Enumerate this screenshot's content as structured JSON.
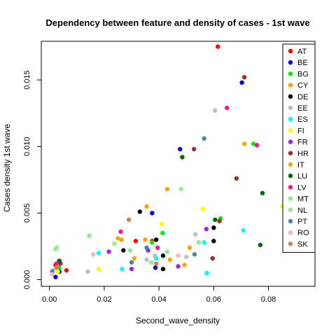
{
  "chart_data": {
    "type": "scatter",
    "title": "Dependency between feature and density of cases -  1st wave",
    "xlabel": "Second_wave_density",
    "ylabel": "Cases density  1st wave",
    "xlim": [
      -0.003,
      0.097
    ],
    "ylim": [
      -0.0005,
      0.0179
    ],
    "xticks": [
      0.0,
      0.02,
      0.04,
      0.06,
      0.08
    ],
    "xtick_labels": [
      "0.00",
      "0.02",
      "0.04",
      "0.06",
      "0.08"
    ],
    "yticks": [
      0.0,
      0.005,
      0.01,
      0.015
    ],
    "ytick_labels": [
      "0.000",
      "0.005",
      "0.010",
      "0.015"
    ],
    "grid": false,
    "legend_position": "top-right",
    "series": [
      {
        "name": "AT",
        "color": "#FF0000",
        "points": [
          [
            0.0615,
            0.0175
          ],
          [
            0.0315,
            0.0029
          ],
          [
            0.0375,
            0.0029
          ],
          [
            0.0062,
            0.0007
          ],
          [
            0.0022,
            0.0011
          ]
        ]
      },
      {
        "name": "BE",
        "color": "#0000FF",
        "points": [
          [
            0.0703,
            0.0148
          ],
          [
            0.0477,
            0.0098
          ],
          [
            0.0375,
            0.005
          ],
          [
            0.0387,
            0.0009
          ],
          [
            0.0022,
            0.0002
          ],
          [
            0.0036,
            0.0006
          ]
        ]
      },
      {
        "name": "BG",
        "color": "#00EE00",
        "points": [
          [
            0.0745,
            0.0102
          ],
          [
            0.0413,
            0.0035
          ],
          [
            0.0375,
            0.0028
          ],
          [
            0.0625,
            0.0046
          ],
          [
            0.0035,
            0.0009
          ]
        ]
      },
      {
        "name": "CY",
        "color": "#FFA500",
        "points": [
          [
            0.0712,
            0.0102
          ],
          [
            0.043,
            0.0068
          ],
          [
            0.0355,
            0.0055
          ],
          [
            0.0512,
            0.0024
          ],
          [
            0.0263,
            0.003
          ],
          [
            0.0493,
            0.0011
          ],
          [
            0.031,
            0.0016
          ]
        ]
      },
      {
        "name": "DE",
        "color": "#000000",
        "points": [
          [
            0.033,
            0.0051
          ],
          [
            0.06,
            0.0039
          ],
          [
            0.06,
            0.0029
          ],
          [
            0.039,
            0.003
          ],
          [
            0.0415,
            0.0018
          ],
          [
            0.027,
            0.0022
          ],
          [
            0.0036,
            0.0014
          ],
          [
            0.0415,
            0.0008
          ]
        ]
      },
      {
        "name": "EE",
        "color": "#BEBEBE",
        "points": [
          [
            0.0605,
            0.0127
          ],
          [
            0.0533,
            0.0034
          ],
          [
            0.05,
            0.0017
          ],
          [
            0.014,
            0.0006
          ],
          [
            0.0012,
            0.0007
          ],
          [
            0.0385,
            0.0018
          ],
          [
            0.0355,
            0.0015
          ]
        ]
      },
      {
        "name": "ES",
        "color": "#00FFFF",
        "points": [
          [
            0.0708,
            0.0037
          ],
          [
            0.0565,
            0.0028
          ],
          [
            0.0575,
            0.0005
          ],
          [
            0.018,
            0.002
          ],
          [
            0.0265,
            0.0008
          ],
          [
            0.039,
            0.0016
          ]
        ]
      },
      {
        "name": "FI",
        "color": "#FFFF00",
        "points": [
          [
            0.085,
            0.0055
          ],
          [
            0.056,
            0.0053
          ],
          [
            0.041,
            0.0042
          ],
          [
            0.018,
            0.0008
          ],
          [
            0.003,
            0.0006
          ]
        ]
      },
      {
        "name": "FR",
        "color": "#A020F0",
        "points": [
          [
            0.0573,
            0.0038
          ],
          [
            0.047,
            0.001
          ],
          [
            0.0217,
            0.0021
          ],
          [
            0.03,
            0.0008
          ],
          [
            0.036,
            0.0022
          ]
        ]
      },
      {
        "name": "HR",
        "color": "#A52A2A",
        "points": [
          [
            0.0712,
            0.0152
          ],
          [
            0.0528,
            0.0098
          ],
          [
            0.0683,
            0.0076
          ],
          [
            0.0621,
            0.0044
          ],
          [
            0.0596,
            0.0016
          ],
          [
            0.004,
            0.0012
          ]
        ]
      },
      {
        "name": "IT",
        "color": "#FFA500",
        "points": [
          [
            0.035,
            0.003
          ],
          [
            0.025,
            0.0031
          ],
          [
            0.044,
            0.0015
          ]
        ]
      },
      {
        "name": "LU",
        "color": "#006400",
        "points": [
          [
            0.0778,
            0.0065
          ],
          [
            0.077,
            0.0026
          ],
          [
            0.0485,
            0.0092
          ],
          [
            0.0605,
            0.0045
          ],
          [
            0.0035,
            0.0014
          ]
        ]
      },
      {
        "name": "LV",
        "color": "#FF1493",
        "points": [
          [
            0.0648,
            0.0129
          ],
          [
            0.0758,
            0.0101
          ],
          [
            0.026,
            0.0036
          ],
          [
            0.0395,
            0.0024
          ],
          [
            0.0025,
            0.0012
          ]
        ]
      },
      {
        "name": "MT",
        "color": "#90EE90",
        "points": [
          [
            0.0481,
            0.0068
          ],
          [
            0.0145,
            0.0033
          ],
          [
            0.0027,
            0.0024
          ],
          [
            0.0237,
            0.0027
          ],
          [
            0.043,
            0.0021
          ]
        ]
      },
      {
        "name": "NL",
        "color": "#90EE90",
        "points": [
          [
            0.0022,
            0.0023
          ],
          [
            0.0295,
            0.0022
          ],
          [
            0.0372,
            0.0013
          ],
          [
            0.0545,
            0.0028
          ]
        ]
      },
      {
        "name": "PT",
        "color": "#4682B4",
        "points": [
          [
            0.0565,
            0.0106
          ],
          [
            0.0355,
            0.0024
          ],
          [
            0.053,
            0.0019
          ],
          [
            0.03,
            0.0013
          ],
          [
            0.001,
            0.0006
          ]
        ]
      },
      {
        "name": "RO",
        "color": "#FFB6C1",
        "points": [
          [
            0.016,
            0.0019
          ],
          [
            0.047,
            0.0018
          ],
          [
            0.001,
            0.0004
          ]
        ]
      },
      {
        "name": "SK",
        "color": "#CD853F",
        "points": [
          [
            0.029,
            0.0045
          ],
          [
            0.039,
            0.0012
          ],
          [
            0.0025,
            0.0009
          ]
        ]
      }
    ]
  }
}
